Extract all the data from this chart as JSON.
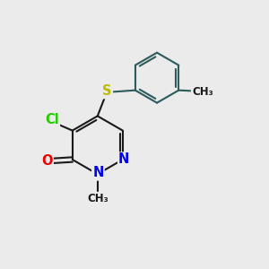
{
  "bg_color": "#ebebeb",
  "bond_color": "#2d5a5a",
  "pyridazine_bond_color": "#1a1a1a",
  "bond_width": 1.5,
  "atom_colors": {
    "N": "#0000ee",
    "O": "#ee0000",
    "Cl": "#22cc00",
    "S": "#bbbb00",
    "C": "#1a1a1a"
  },
  "font_size": 10.5
}
